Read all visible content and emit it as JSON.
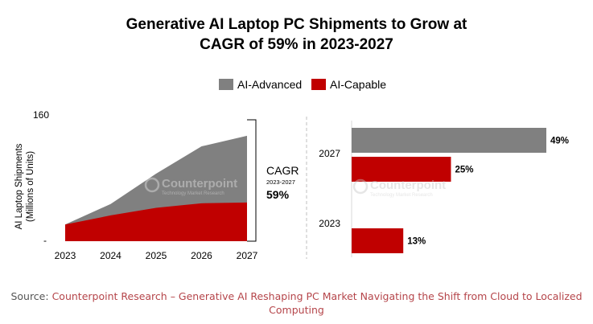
{
  "title_line1": "Generative AI Laptop PC Shipments to Grow at",
  "title_line2": "CAGR of 59% in 2023-2027",
  "legend": [
    {
      "label": "AI-Advanced",
      "color": "#808080"
    },
    {
      "label": "AI-Capable",
      "color": "#c00000"
    }
  ],
  "colors": {
    "ai_advanced": "#808080",
    "ai_capable": "#c00000",
    "source_link": "#b5454a"
  },
  "watermark": {
    "name": "Counterpoint",
    "tagline": "Technology Market Research"
  },
  "cagr": {
    "label": "CAGR",
    "period": "2023-2027",
    "value": "59%"
  },
  "source": {
    "lead": "Source:",
    "text": "Counterpoint Research – Generative AI Reshaping PC Market Navigating the Shift from Cloud to Localized Computing"
  },
  "chart_data": [
    {
      "type": "area",
      "title": "",
      "ylabel": "AI Laptop Shipments (Millions of Units)",
      "ylabel_lines": [
        "AI Laptop Shipments",
        "(Millions of Units)"
      ],
      "x": [
        "2023",
        "2024",
        "2025",
        "2026",
        "2027"
      ],
      "ylim": [
        0,
        160
      ],
      "y_tick_labels": [
        "160",
        "-"
      ],
      "stacked": true,
      "series": [
        {
          "name": "AI-Capable",
          "values": [
            22,
            34,
            44,
            50,
            51
          ]
        },
        {
          "name": "AI-Advanced",
          "values": [
            0,
            15,
            45,
            75,
            88
          ]
        }
      ]
    },
    {
      "type": "bar",
      "orientation": "horizontal",
      "categories": [
        "2027",
        "2023"
      ],
      "series": [
        {
          "name": "AI-Advanced",
          "values": [
            49,
            null
          ],
          "labels": [
            "49%",
            ""
          ]
        },
        {
          "name": "AI-Capable",
          "values": [
            25,
            13
          ],
          "labels": [
            "25%",
            "13%"
          ]
        }
      ],
      "unit": "%"
    }
  ]
}
